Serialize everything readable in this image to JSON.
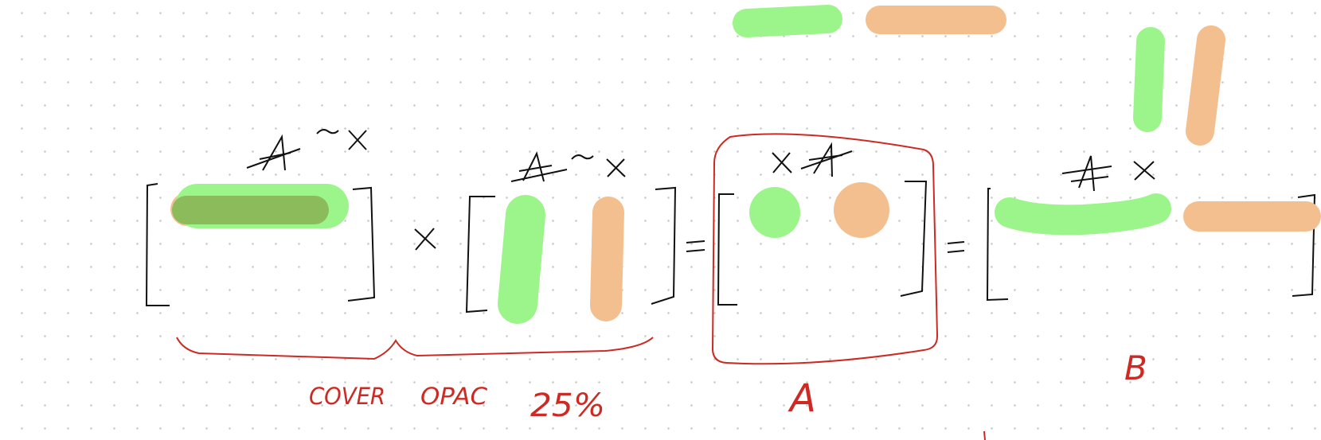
{
  "colors": {
    "ink": "#111111",
    "annotation": "#cc2a22",
    "green": "#9cf58a",
    "orange": "#f4bf8f",
    "dark_overlap": "#8cbb5c",
    "grid_dot": "#c9c9c9"
  },
  "annotations": {
    "caption_color": "COVER",
    "caption_opac": "OPAC",
    "caption_pct": "25%",
    "label_a": "A",
    "label_b": "B"
  },
  "operators": {
    "times": "×",
    "equals": "="
  }
}
